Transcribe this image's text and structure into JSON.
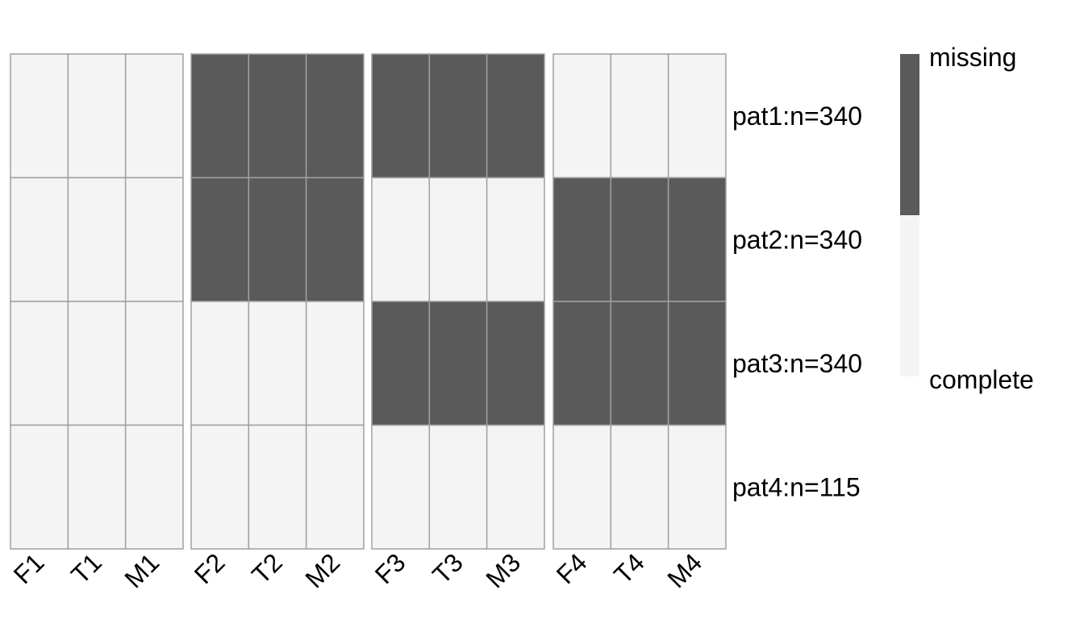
{
  "chart_data": {
    "type": "heatmap",
    "column_groups": [
      [
        "F1",
        "T1",
        "M1"
      ],
      [
        "F2",
        "T2",
        "M2"
      ],
      [
        "F3",
        "T3",
        "M3"
      ],
      [
        "F4",
        "T4",
        "M4"
      ]
    ],
    "rows": [
      "pat1:n=340",
      "pat2:n=340",
      "pat3:n=340",
      "pat4:n=115"
    ],
    "values": [
      [
        0,
        0,
        0,
        1,
        1,
        1,
        1,
        1,
        1,
        0,
        0,
        0
      ],
      [
        0,
        0,
        0,
        1,
        1,
        1,
        0,
        0,
        0,
        1,
        1,
        1
      ],
      [
        0,
        0,
        0,
        0,
        0,
        0,
        1,
        1,
        1,
        1,
        1,
        1
      ],
      [
        0,
        0,
        0,
        0,
        0,
        0,
        0,
        0,
        0,
        0,
        0,
        0
      ]
    ],
    "legend": {
      "missing_label": "missing",
      "complete_label": "complete",
      "placement": "right"
    },
    "colors": {
      "missing": "#5a5a5a",
      "complete": "#f4f4f4",
      "grid": "#a0a0a0"
    }
  }
}
